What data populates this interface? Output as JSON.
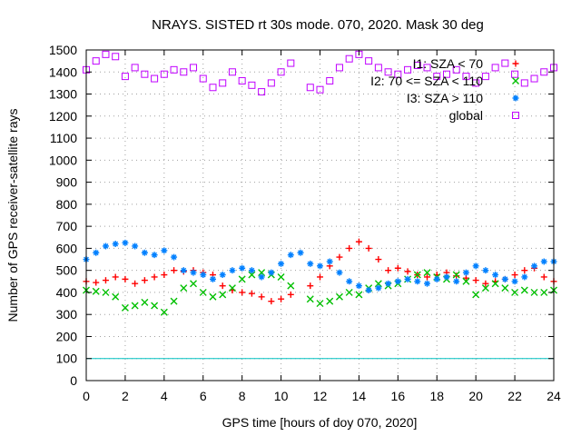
{
  "chart_data": {
    "type": "scatter",
    "title": "NRAYS. SISTED rt 30s mode. 070, 2020. Mask 30 deg",
    "xlabel": "GPS time [hours of doy 070, 2020]",
    "ylabel": "Number of GPS receiver-satellite rays",
    "xlim": [
      0,
      24
    ],
    "ylim": [
      0,
      1500
    ],
    "x_ticks": [
      0,
      2,
      4,
      6,
      8,
      10,
      12,
      14,
      16,
      18,
      20,
      22,
      24
    ],
    "y_ticks": [
      0,
      100,
      200,
      300,
      400,
      500,
      600,
      700,
      800,
      900,
      1000,
      1100,
      1200,
      1300,
      1400,
      1500
    ],
    "reference_line": {
      "y": 100,
      "color": "#00c0c0"
    },
    "legend_position": "top-right",
    "series": [
      {
        "name": "I1: SZA < 70",
        "marker": "+",
        "color": "#ff0000",
        "x": [
          0,
          0.5,
          1,
          1.5,
          2,
          2.5,
          3,
          3.5,
          4,
          4.5,
          5,
          5.5,
          6,
          6.5,
          7,
          7.5,
          8,
          8.5,
          9,
          9.5,
          10,
          10.5,
          11,
          11.5,
          12,
          12.5,
          13,
          13.5,
          14,
          14.5,
          15,
          15.5,
          16,
          16.5,
          17,
          17.5,
          18,
          18.5,
          19,
          19.5,
          20,
          20.5,
          21,
          21.5,
          22,
          22.5,
          23,
          23.5,
          24
        ],
        "values": [
          450,
          445,
          455,
          470,
          460,
          440,
          455,
          470,
          480,
          500,
          495,
          500,
          490,
          480,
          430,
          410,
          400,
          395,
          380,
          360,
          370,
          390,
          null,
          430,
          470,
          520,
          560,
          600,
          630,
          600,
          550,
          500,
          510,
          495,
          480,
          470,
          480,
          490,
          475,
          465,
          455,
          440,
          450,
          460,
          480,
          500,
          510,
          470,
          450
        ]
      },
      {
        "name": "I2: 70 <= SZA < 110",
        "marker": "x",
        "color": "#00c000",
        "x": [
          0,
          0.5,
          1,
          1.5,
          2,
          2.5,
          3,
          3.5,
          4,
          4.5,
          5,
          5.5,
          6,
          6.5,
          7,
          7.5,
          8,
          8.5,
          9,
          9.5,
          10,
          10.5,
          11,
          11.5,
          12,
          12.5,
          13,
          13.5,
          14,
          14.5,
          15,
          15.5,
          16,
          16.5,
          17,
          17.5,
          18,
          18.5,
          19,
          19.5,
          20,
          20.5,
          21,
          21.5,
          22,
          22.5,
          23,
          23.5,
          24
        ],
        "values": [
          410,
          405,
          400,
          380,
          330,
          340,
          355,
          340,
          310,
          360,
          420,
          440,
          400,
          380,
          390,
          420,
          460,
          480,
          490,
          480,
          470,
          430,
          null,
          370,
          350,
          360,
          380,
          400,
          390,
          420,
          440,
          430,
          440,
          460,
          480,
          490,
          470,
          460,
          480,
          450,
          390,
          420,
          440,
          420,
          400,
          410,
          400,
          400,
          410
        ]
      },
      {
        "name": "I3: SZA > 110",
        "marker": "*",
        "color": "#0080ff",
        "x": [
          0,
          0.5,
          1,
          1.5,
          2,
          2.5,
          3,
          3.5,
          4,
          4.5,
          5,
          5.5,
          6,
          6.5,
          7,
          7.5,
          8,
          8.5,
          9,
          9.5,
          10,
          10.5,
          11,
          11.5,
          12,
          12.5,
          13,
          13.5,
          14,
          14.5,
          15,
          15.5,
          16,
          16.5,
          17,
          17.5,
          18,
          18.5,
          19,
          19.5,
          20,
          20.5,
          21,
          21.5,
          22,
          22.5,
          23,
          23.5,
          24
        ],
        "values": [
          550,
          580,
          610,
          620,
          625,
          610,
          580,
          570,
          590,
          560,
          500,
          490,
          480,
          460,
          480,
          500,
          510,
          500,
          470,
          490,
          530,
          570,
          580,
          530,
          520,
          540,
          490,
          450,
          430,
          410,
          420,
          440,
          450,
          460,
          450,
          440,
          460,
          470,
          450,
          490,
          520,
          500,
          480,
          460,
          450,
          470,
          520,
          540,
          540
        ]
      },
      {
        "name": "global",
        "marker": "square",
        "color": "#c000ff",
        "x": [
          0,
          0.5,
          1,
          1.5,
          2,
          2.5,
          3,
          3.5,
          4,
          4.5,
          5,
          5.5,
          6,
          6.5,
          7,
          7.5,
          8,
          8.5,
          9,
          9.5,
          10,
          10.5,
          11,
          11.5,
          12,
          12.5,
          13,
          13.5,
          14,
          14.5,
          15,
          15.5,
          16,
          16.5,
          17,
          17.5,
          18,
          18.5,
          19,
          19.5,
          20,
          20.5,
          21,
          21.5,
          22,
          22.5,
          23,
          23.5,
          24
        ],
        "values": [
          1410,
          1450,
          1480,
          1470,
          1380,
          1420,
          1390,
          1370,
          1390,
          1410,
          1400,
          1420,
          1370,
          1330,
          1350,
          1400,
          1360,
          1340,
          1310,
          1350,
          1400,
          1440,
          null,
          1330,
          1320,
          1360,
          1420,
          1460,
          1480,
          1450,
          1420,
          1400,
          1390,
          1410,
          1430,
          1420,
          1380,
          1390,
          1410,
          1380,
          1350,
          1380,
          1420,
          1440,
          1390,
          1350,
          1370,
          1400,
          1420
        ]
      }
    ]
  }
}
